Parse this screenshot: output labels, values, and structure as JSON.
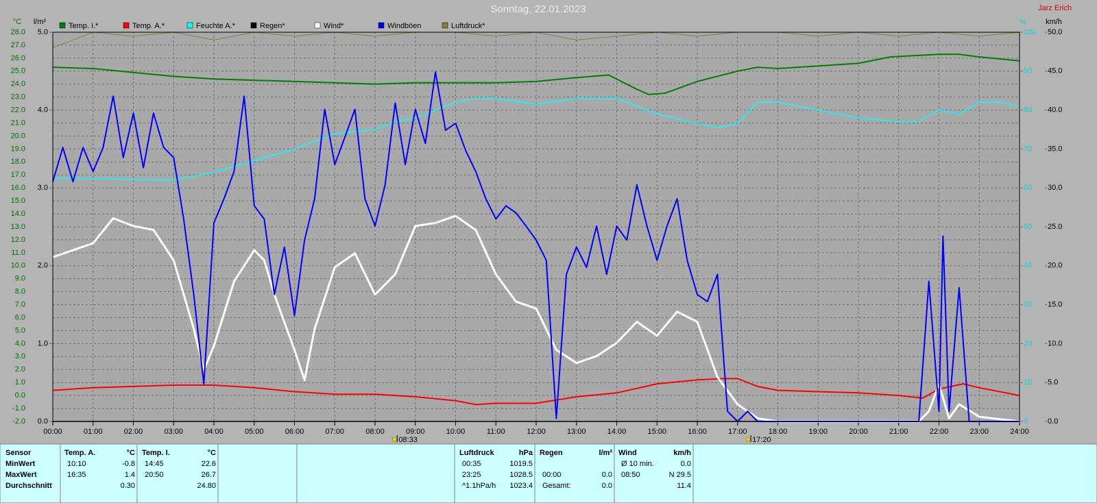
{
  "chart_data": {
    "type": "line",
    "title": "Sonntag, 22.01.2023",
    "author": "Jarz Erich",
    "xlim": [
      0,
      24
    ],
    "xticks": [
      {
        "value": 0,
        "label": "00:00"
      },
      {
        "value": 1,
        "label": "01:00"
      },
      {
        "value": 2,
        "label": "02:00"
      },
      {
        "value": 3,
        "label": "03:00"
      },
      {
        "value": 4,
        "label": "04:00"
      },
      {
        "value": 5,
        "label": "05:00"
      },
      {
        "value": 6,
        "label": "06:00"
      },
      {
        "value": 7,
        "label": "07:00"
      },
      {
        "value": 8,
        "label": "08:00"
      },
      {
        "value": 9,
        "label": "09:00"
      },
      {
        "value": 10,
        "label": "10:00"
      },
      {
        "value": 11,
        "label": "11:00"
      },
      {
        "value": 12,
        "label": "12:00"
      },
      {
        "value": 13,
        "label": "13:00"
      },
      {
        "value": 14,
        "label": "14:00"
      },
      {
        "value": 15,
        "label": "15:00"
      },
      {
        "value": 16,
        "label": "16:00"
      },
      {
        "value": 17,
        "label": "17:00"
      },
      {
        "value": 18,
        "label": "18:00"
      },
      {
        "value": 19,
        "label": "19:00"
      },
      {
        "value": 20,
        "label": "20:00"
      },
      {
        "value": 21,
        "label": "21:00"
      },
      {
        "value": 22,
        "label": "22:00"
      },
      {
        "value": 23,
        "label": "23:00"
      },
      {
        "value": 24,
        "label": "24:00"
      }
    ],
    "y_label": "°C",
    "ylim": [
      -2,
      28
    ],
    "yticks": [
      {
        "value": -2,
        "label": "-2.0"
      },
      {
        "value": -1,
        "label": "-1.0"
      },
      {
        "value": 0,
        "label": "0.0"
      },
      {
        "value": 1,
        "label": "1.0"
      },
      {
        "value": 2,
        "label": "2.0"
      },
      {
        "value": 3,
        "label": "3.0"
      },
      {
        "value": 4,
        "label": "4.0"
      },
      {
        "value": 5,
        "label": "5.0"
      },
      {
        "value": 6,
        "label": "6.0"
      },
      {
        "value": 7,
        "label": "7.0"
      },
      {
        "value": 8,
        "label": "8.0"
      },
      {
        "value": 9,
        "label": "9.0"
      },
      {
        "value": 10,
        "label": "10.0"
      },
      {
        "value": 11,
        "label": "11.0"
      },
      {
        "value": 12,
        "label": "12.0"
      },
      {
        "value": 13,
        "label": "13.0"
      },
      {
        "value": 14,
        "label": "14.0"
      },
      {
        "value": 15,
        "label": "15.0"
      },
      {
        "value": 16,
        "label": "16.0"
      },
      {
        "value": 17,
        "label": "17.0"
      },
      {
        "value": 18,
        "label": "18.0"
      },
      {
        "value": 19,
        "label": "19.0"
      },
      {
        "value": 20,
        "label": "20.0"
      },
      {
        "value": 21,
        "label": "21.0"
      },
      {
        "value": 22,
        "label": "22.0"
      },
      {
        "value": 23,
        "label": "23.0"
      },
      {
        "value": 24,
        "label": "24.0"
      },
      {
        "value": 25,
        "label": "25.0"
      },
      {
        "value": 26,
        "label": "26.0"
      },
      {
        "value": 27,
        "label": "27.0"
      },
      {
        "value": 28,
        "label": "28.0"
      }
    ],
    "y2_label": "l/m²",
    "y2lim": [
      0,
      5
    ],
    "y2ticks": [
      {
        "value": 0,
        "label": "0.0"
      },
      {
        "value": 1,
        "label": "1.0"
      },
      {
        "value": 2,
        "label": "2.0"
      },
      {
        "value": 3,
        "label": "3.0"
      },
      {
        "value": 4,
        "label": "4.0"
      },
      {
        "value": 5,
        "label": "5.0"
      }
    ],
    "y3_label": "%",
    "y3lim": [
      0,
      100
    ],
    "y3ticks": [
      0,
      10,
      20,
      30,
      40,
      50,
      60,
      70,
      80,
      90,
      100
    ],
    "y4_label": "km/h",
    "y4lim": [
      0,
      50
    ],
    "y4ticks": [
      {
        "value": 0,
        "label": "0.0"
      },
      {
        "value": 5,
        "label": "5.0"
      },
      {
        "value": 10,
        "label": "10.0"
      },
      {
        "value": 15,
        "label": "15.0"
      },
      {
        "value": 20,
        "label": "20.0"
      },
      {
        "value": 25,
        "label": "25.0"
      },
      {
        "value": 30,
        "label": "30.0"
      },
      {
        "value": 35,
        "label": "35.0"
      },
      {
        "value": 40,
        "label": "40.0"
      },
      {
        "value": 45,
        "label": "45.0"
      },
      {
        "value": 50,
        "label": "50.0"
      }
    ],
    "grid": true,
    "series": [
      {
        "name": "Temp. I.*",
        "color": "#008000",
        "axis": "y",
        "width": 2,
        "x": [
          0,
          1,
          2,
          3,
          4,
          5,
          6,
          7,
          8,
          9,
          10,
          11,
          12,
          13,
          13.8,
          14.5,
          14.8,
          15.2,
          16,
          17,
          17.5,
          18,
          19,
          20,
          20.8,
          22,
          22.5,
          23,
          24
        ],
        "values": [
          25.3,
          25.2,
          24.9,
          24.6,
          24.4,
          24.3,
          24.2,
          24.1,
          24.0,
          24.1,
          24.1,
          24.1,
          24.2,
          24.5,
          24.7,
          23.6,
          23.2,
          23.3,
          24.2,
          25.0,
          25.3,
          25.2,
          25.4,
          25.6,
          26.1,
          26.3,
          26.3,
          26.1,
          25.8
        ]
      },
      {
        "name": "Temp. A.*",
        "color": "#ff0000",
        "axis": "y",
        "width": 2,
        "x": [
          0,
          1,
          2,
          3,
          4,
          5,
          6,
          7,
          8,
          9,
          10,
          10.5,
          11,
          12,
          13,
          14,
          15,
          16,
          16.6,
          17,
          17.5,
          18,
          19,
          20,
          21,
          21.6,
          22,
          22.6,
          23,
          24
        ],
        "values": [
          0.4,
          0.6,
          0.7,
          0.8,
          0.8,
          0.6,
          0.3,
          0.1,
          0.1,
          -0.1,
          -0.4,
          -0.7,
          -0.6,
          -0.6,
          -0.1,
          0.2,
          0.9,
          1.2,
          1.3,
          1.3,
          0.7,
          0.4,
          0.3,
          0.2,
          0.0,
          -0.2,
          0.5,
          0.9,
          0.6,
          0.0
        ]
      },
      {
        "name": "Feuchte A.*",
        "color": "#00ffff",
        "axis": "y3",
        "width": 1.5,
        "x": [
          0,
          3,
          4,
          5,
          6,
          7,
          8,
          8.5,
          9,
          10,
          10.5,
          11,
          12,
          13,
          14,
          15,
          16,
          16.5,
          17,
          17.5,
          18,
          19,
          20,
          21,
          21.5,
          22,
          22.5,
          23,
          23.5,
          24
        ],
        "values": [
          62.5,
          62,
          64,
          67,
          70,
          74,
          75,
          77,
          78,
          82,
          83,
          83,
          81.5,
          83,
          83,
          79,
          76.5,
          75.5,
          76.5,
          82,
          82,
          80,
          78,
          77,
          77,
          80,
          79,
          82,
          82,
          81
        ]
      },
      {
        "name": "Regen*",
        "color": "#000000",
        "axis": "y2",
        "width": 1.5,
        "x": [
          0,
          24
        ],
        "values": [
          0,
          0
        ]
      },
      {
        "name": "Wind*",
        "color": "#ffffff",
        "axis": "y4",
        "width": 3,
        "x": [
          0,
          0.5,
          1,
          1.5,
          2,
          2.5,
          3,
          3.5,
          3.75,
          4,
          4.5,
          5,
          5.25,
          5.5,
          6,
          6.25,
          6.5,
          7,
          7.5,
          8,
          8.5,
          9,
          9.5,
          10,
          10.5,
          11,
          11.5,
          12,
          12.5,
          13,
          13.5,
          14,
          14.5,
          15,
          15.5,
          16,
          16.5,
          17,
          17.5,
          18,
          21.5,
          21.75,
          22,
          22.25,
          22.5,
          23,
          24
        ],
        "values": [
          21.1,
          22,
          22.9,
          26.1,
          25.1,
          24.6,
          20.7,
          11.9,
          6.6,
          9.7,
          18,
          22,
          20.7,
          16.3,
          9.2,
          5.3,
          11.9,
          19.8,
          21.6,
          16.3,
          18.9,
          25.1,
          25.5,
          26.4,
          24.6,
          18.9,
          15.4,
          14.5,
          9.2,
          7.5,
          8.4,
          10.1,
          12.8,
          11,
          14.1,
          12.8,
          5.7,
          2.2,
          0.4,
          0,
          0,
          1.3,
          4.8,
          0.4,
          2.2,
          0.6,
          0
        ]
      },
      {
        "name": "Windböen",
        "color": "#0000ff",
        "axis": "y4",
        "width": 2,
        "x": [
          0,
          0.25,
          0.5,
          0.75,
          1,
          1.25,
          1.5,
          1.75,
          2,
          2.25,
          2.5,
          2.75,
          3,
          3.25,
          3.5,
          3.75,
          4,
          4.25,
          4.5,
          4.75,
          5,
          5.25,
          5.5,
          5.75,
          6,
          6.25,
          6.5,
          6.75,
          7,
          7.25,
          7.5,
          7.75,
          8,
          8.25,
          8.5,
          8.75,
          9,
          9.25,
          9.5,
          9.75,
          10,
          10.25,
          10.5,
          10.75,
          11,
          11.25,
          11.5,
          11.75,
          12,
          12.25,
          12.5,
          12.75,
          13,
          13.25,
          13.5,
          13.75,
          14,
          14.25,
          14.5,
          14.75,
          15,
          15.25,
          15.5,
          15.75,
          16,
          16.25,
          16.5,
          16.75,
          17,
          17.25,
          17.5,
          18,
          21.5,
          21.75,
          22,
          22.1,
          22.25,
          22.5,
          22.75,
          23,
          24
        ],
        "values": [
          30.8,
          35.2,
          30.8,
          35.2,
          32.1,
          35.2,
          41.8,
          33.9,
          39.6,
          32.6,
          39.6,
          35.2,
          33.9,
          26,
          16.3,
          4.8,
          25.5,
          28.6,
          32.1,
          41.8,
          27.7,
          26,
          16.3,
          22.4,
          13.6,
          23.3,
          28.6,
          40.1,
          33,
          36.5,
          40.1,
          28.6,
          25.1,
          30.4,
          40.9,
          33,
          40.1,
          35.7,
          44.9,
          37.4,
          38.3,
          34.8,
          32.1,
          28.6,
          26,
          27.7,
          26.8,
          25.1,
          23.3,
          20.7,
          0.4,
          18.9,
          22.4,
          19.8,
          25.1,
          18.9,
          25.1,
          23.3,
          30.4,
          25.1,
          20.7,
          25.1,
          28.6,
          20.7,
          16.3,
          15.4,
          18.9,
          1.3,
          0,
          1.3,
          0,
          0,
          0,
          18,
          1.3,
          23.8,
          1.3,
          17.2,
          0,
          0,
          0
        ]
      },
      {
        "name": "Luftdruck*",
        "color": "#808040",
        "axis": "y3",
        "width": 1,
        "x": [
          0,
          1,
          2,
          3,
          4,
          5,
          6,
          7,
          8,
          9,
          10,
          11,
          12,
          13,
          14,
          15,
          16,
          17,
          18,
          19,
          20,
          21,
          22,
          23,
          24
        ],
        "values": [
          96,
          100,
          99,
          100,
          98,
          100,
          99,
          100,
          99,
          100,
          100,
          99,
          100,
          98,
          99,
          100,
          99,
          100,
          100,
          99,
          100,
          99,
          100,
          99,
          100
        ]
      }
    ],
    "annotations": [
      {
        "x": 8.55,
        "text": "08:33"
      },
      {
        "x": 17.33,
        "text": "17:20"
      }
    ]
  },
  "stats": {
    "row_labels": [
      "Sensor",
      "MinWert",
      "MaxWert",
      "Durchschnitt"
    ],
    "groups": [
      {
        "name": "Temp. A.",
        "unit": "°C",
        "rows": [
          [
            "10:10",
            "-0.8"
          ],
          [
            "16:35",
            "1.4"
          ],
          [
            "0.30"
          ]
        ]
      },
      {
        "name": "Temp. I.",
        "unit": "°C",
        "rows": [
          [
            "14:45",
            "22.6"
          ],
          [
            "20:50",
            "26.7"
          ],
          [
            "24.80"
          ]
        ]
      },
      {
        "name": "Luftdruck",
        "unit": "hPa",
        "rows": [
          [
            "00:35",
            "1019.5"
          ],
          [
            "23:25",
            "1028.5"
          ],
          [
            "^1.1hPa/h",
            "1023.4"
          ]
        ]
      },
      {
        "name": "Regen",
        "unit": "l/m²",
        "rows": [
          null,
          [
            "00:00",
            "0.0"
          ],
          [
            "Gesamt:",
            "0.0"
          ]
        ]
      },
      {
        "name": "Wind",
        "unit": "km/h",
        "rows": [
          [
            "Ø 10 min.",
            "0.0"
          ],
          [
            "08:50",
            "N 29.5"
          ],
          [
            "11.4"
          ]
        ]
      }
    ]
  }
}
